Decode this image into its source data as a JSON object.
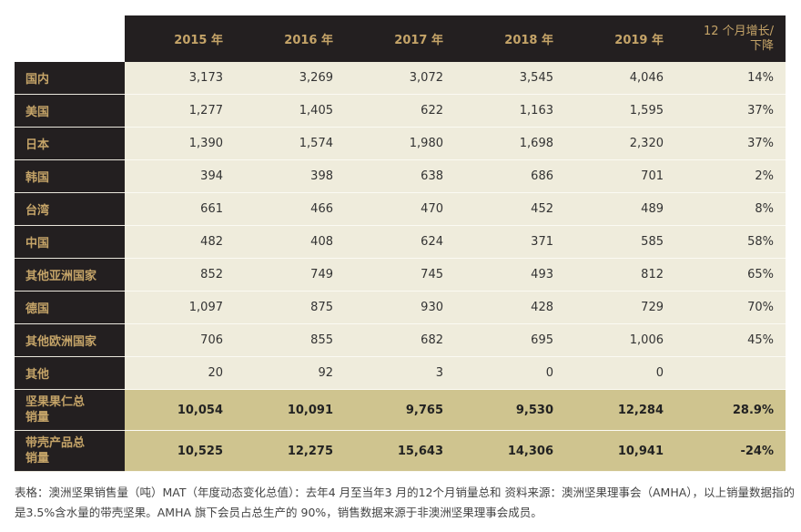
{
  "headers": [
    "2015 年",
    "2016 年",
    "2017 年",
    "2018 年",
    "2019 年",
    "12 个月增长/下降"
  ],
  "rows": [
    {
      "label": "国内",
      "values": [
        "3,173",
        "3,269",
        "3,072",
        "3,545",
        "4,046",
        "14%"
      ]
    },
    {
      "label": "美国",
      "values": [
        "1,277",
        "1,405",
        "622",
        "1,163",
        "1,595",
        "37%"
      ]
    },
    {
      "label": "日本",
      "values": [
        "1,390",
        "1,574",
        "1,980",
        "1,698",
        "2,320",
        "37%"
      ]
    },
    {
      "label": "韩国",
      "values": [
        "394",
        "398",
        "638",
        "686",
        "701",
        "2%"
      ]
    },
    {
      "label": "台湾",
      "values": [
        "661",
        "466",
        "470",
        "452",
        "489",
        "8%"
      ]
    },
    {
      "label": "中国",
      "values": [
        "482",
        "408",
        "624",
        "371",
        "585",
        "58%"
      ]
    },
    {
      "label": "其他亚洲国家",
      "values": [
        "852",
        "749",
        "745",
        "493",
        "812",
        "65%"
      ]
    },
    {
      "label": "德国",
      "values": [
        "1,097",
        "875",
        "930",
        "428",
        "729",
        "70%"
      ]
    },
    {
      "label": "其他欧洲国家",
      "values": [
        "706",
        "855",
        "682",
        "695",
        "1,006",
        "45%"
      ]
    },
    {
      "label": "其他",
      "values": [
        "20",
        "92",
        "3",
        "0",
        "0",
        ""
      ]
    }
  ],
  "totals": [
    {
      "label": "坚果果仁总销量",
      "values": [
        "10,054",
        "10,091",
        "9,765",
        "9,530",
        "12,284",
        "28.9%"
      ]
    },
    {
      "label": "带壳产品总销量",
      "values": [
        "10,525",
        "12,275",
        "15,643",
        "14,306",
        "10,941",
        "-24%"
      ]
    }
  ],
  "caption": "表格：澳洲坚果销售量（吨）MAT（年度动态变化总值）：去年4 月至当年3 月的12个月销量总和 资料来源：澳洲坚果理事会（AMHA），以上销量数据指的是3.5%含水量的带壳坚果。AMHA 旗下会员占总生产的 90%，销售数据来源于非澳洲坚果理事会成员。"
}
